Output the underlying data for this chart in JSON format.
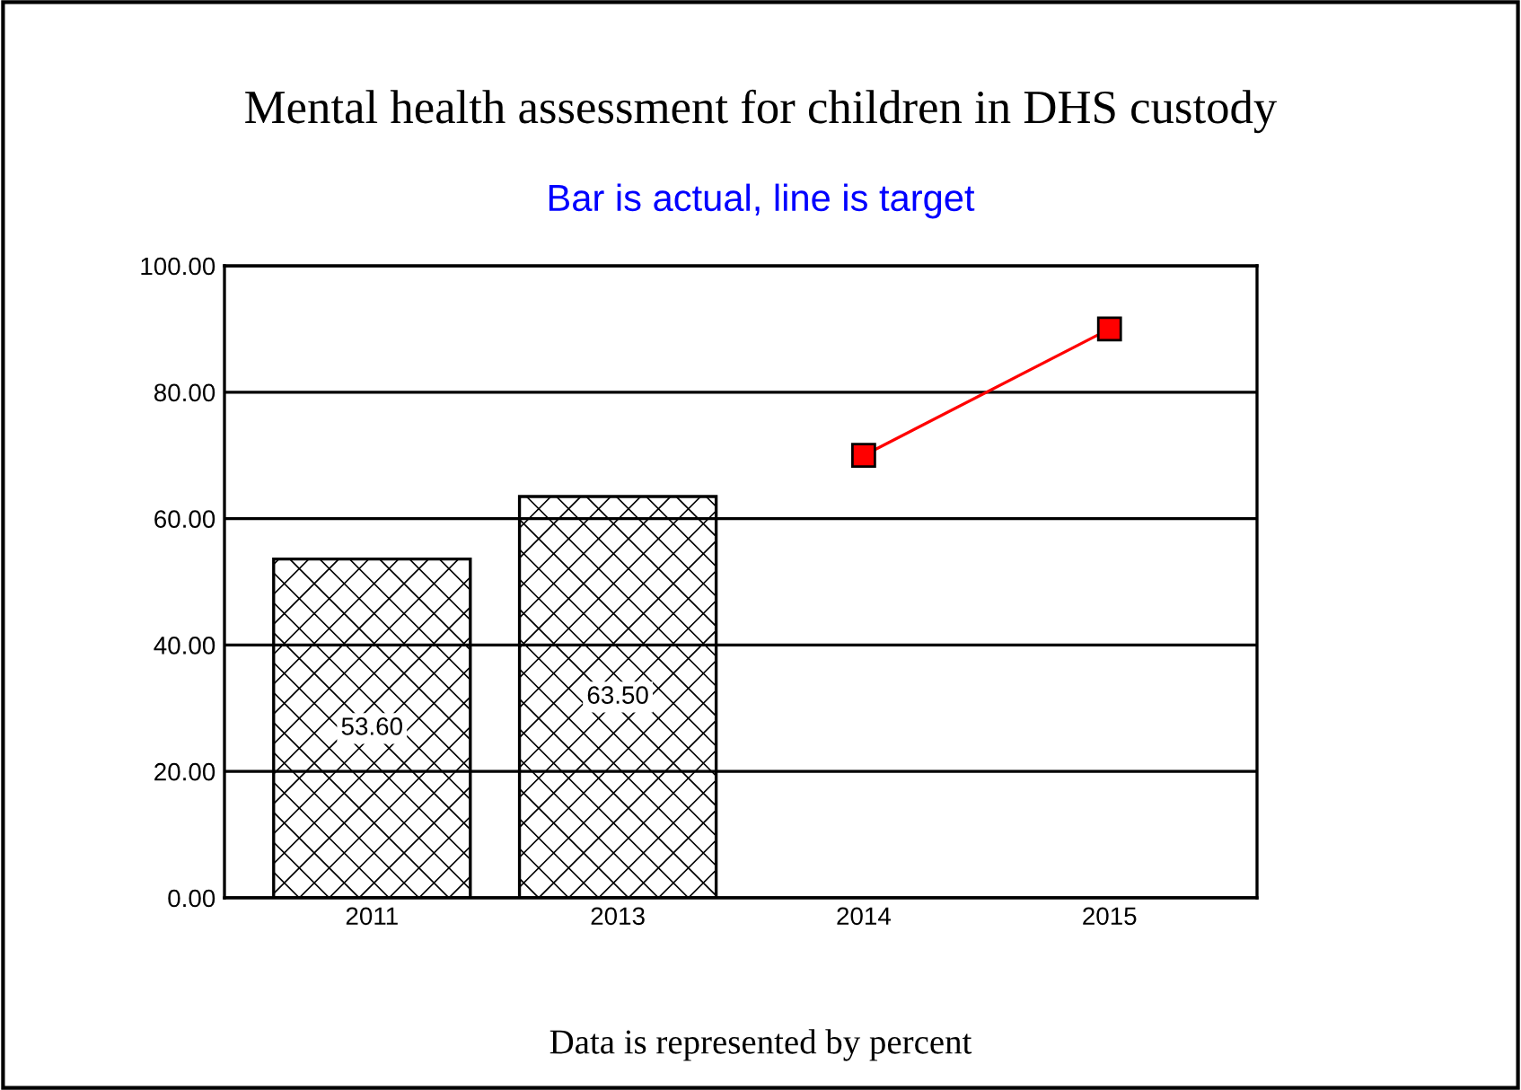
{
  "chart_data": {
    "type": "bar",
    "title": "Mental health assessment for children in DHS custody",
    "subtitle": "Bar is actual, line is target",
    "categories": [
      "2011",
      "2013",
      "2014",
      "2015"
    ],
    "series": [
      {
        "color": "#000000",
        "values": [
          53.6,
          63.5,
          null,
          null
        ],
        "value_labels": [
          "53.60",
          "63.50",
          null,
          null
        ]
      },
      {
        "type": "line",
        "color": "#ff0000",
        "values": [
          null,
          null,
          70,
          90
        ],
        "marker": "square"
      }
    ],
    "ylim": [
      0,
      100
    ],
    "yticks": [
      {
        "value": 0,
        "label": "0.00"
      },
      {
        "value": 20,
        "label": "20.00"
      },
      {
        "value": 40,
        "label": "40.00"
      },
      {
        "value": 60,
        "label": "60.00"
      },
      {
        "value": 80,
        "label": "80.00"
      },
      {
        "value": 100,
        "label": "100.00"
      }
    ],
    "grid": "y",
    "legend": false,
    "annotations": [
      "Data is represented by percent"
    ]
  }
}
